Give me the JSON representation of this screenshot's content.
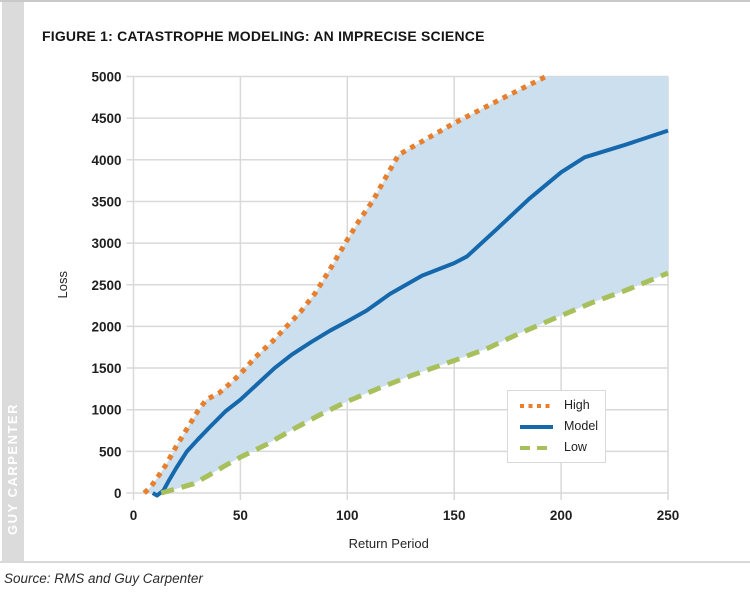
{
  "page": {
    "title": "FIGURE 1: CATASTROPHE MODELING: AN IMPRECISE SCIENCE",
    "brand_vertical_text": "GUY CARPENTER",
    "source_caption": "Source: RMS and Guy Carpenter"
  },
  "colors": {
    "high": "#e87f2e",
    "model": "#1668ac",
    "low": "#a8c05c",
    "band_fill": "#cbdfee",
    "grid": "#d9d9d9",
    "brand_strip": "#dbdbdb",
    "tick_text": "#1f1f1f"
  },
  "chart_data": {
    "type": "line",
    "title": "FIGURE 1: CATASTROPHE MODELING: AN IMPRECISE SCIENCE",
    "xlabel": "Return Period",
    "ylabel": "Loss",
    "xlim": [
      0,
      250
    ],
    "ylim": [
      0,
      5000
    ],
    "xticks": [
      0,
      50,
      100,
      150,
      200,
      250
    ],
    "yticks": [
      0,
      500,
      1000,
      1500,
      2000,
      2500,
      3000,
      3500,
      4000,
      4500,
      5000
    ],
    "grid": true,
    "legend_position": "inside-lower-right",
    "band_between": [
      "High",
      "Low"
    ],
    "band_color": "#cbdfee",
    "grid_color": "#d9d9d9",
    "series": [
      {
        "name": "High",
        "style": "dotted",
        "color": "#e87f2e",
        "points": [
          [
            5,
            0
          ],
          [
            8,
            70
          ],
          [
            11,
            180
          ],
          [
            15,
            330
          ],
          [
            20,
            560
          ],
          [
            25,
            770
          ],
          [
            30,
            980
          ],
          [
            34,
            1120
          ],
          [
            40,
            1200
          ],
          [
            45,
            1310
          ],
          [
            50,
            1430
          ],
          [
            57,
            1630
          ],
          [
            65,
            1820
          ],
          [
            72,
            2010
          ],
          [
            78,
            2170
          ],
          [
            85,
            2400
          ],
          [
            92,
            2690
          ],
          [
            100,
            3040
          ],
          [
            106,
            3290
          ],
          [
            112,
            3510
          ],
          [
            118,
            3790
          ],
          [
            124,
            4060
          ],
          [
            150,
            4440
          ],
          [
            175,
            4770
          ],
          [
            193,
            5000
          ]
        ]
      },
      {
        "name": "Model",
        "style": "solid",
        "color": "#1668ac",
        "points": [
          [
            9,
            0
          ],
          [
            11,
            -30
          ],
          [
            14,
            30
          ],
          [
            17,
            170
          ],
          [
            20,
            300
          ],
          [
            25,
            500
          ],
          [
            30,
            640
          ],
          [
            36,
            800
          ],
          [
            43,
            980
          ],
          [
            50,
            1120
          ],
          [
            58,
            1310
          ],
          [
            66,
            1500
          ],
          [
            74,
            1660
          ],
          [
            83,
            1810
          ],
          [
            92,
            1950
          ],
          [
            100,
            2060
          ],
          [
            109,
            2190
          ],
          [
            120,
            2390
          ],
          [
            135,
            2610
          ],
          [
            150,
            2760
          ],
          [
            156,
            2840
          ],
          [
            170,
            3170
          ],
          [
            185,
            3530
          ],
          [
            200,
            3850
          ],
          [
            211,
            4030
          ],
          [
            230,
            4180
          ],
          [
            250,
            4350
          ]
        ]
      },
      {
        "name": "Low",
        "style": "dashed",
        "color": "#a8c05c",
        "points": [
          [
            13,
            0
          ],
          [
            20,
            50
          ],
          [
            28,
            110
          ],
          [
            35,
            210
          ],
          [
            43,
            330
          ],
          [
            50,
            430
          ],
          [
            62,
            580
          ],
          [
            75,
            770
          ],
          [
            88,
            950
          ],
          [
            100,
            1100
          ],
          [
            115,
            1260
          ],
          [
            130,
            1410
          ],
          [
            150,
            1590
          ],
          [
            165,
            1730
          ],
          [
            180,
            1910
          ],
          [
            200,
            2130
          ],
          [
            215,
            2290
          ],
          [
            230,
            2430
          ],
          [
            250,
            2640
          ]
        ]
      }
    ]
  }
}
